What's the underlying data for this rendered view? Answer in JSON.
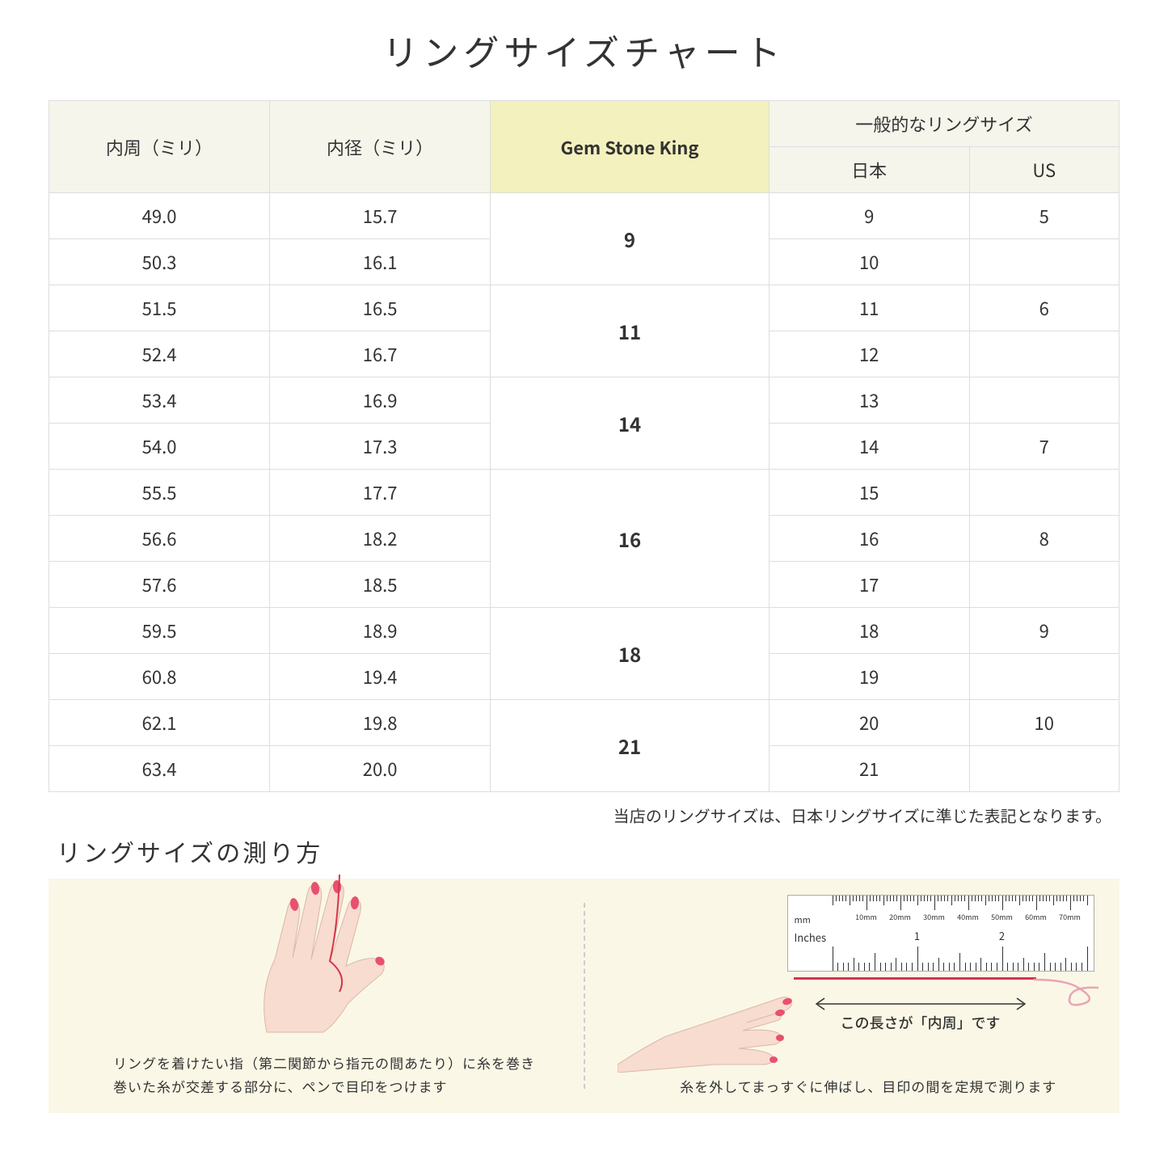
{
  "title": "リングサイズチャート",
  "headers": {
    "circumference": "内周（ミリ）",
    "diameter": "内径（ミリ）",
    "gsk": "Gem Stone King",
    "common": "一般的なリングサイズ",
    "jp": "日本",
    "us": "US"
  },
  "groups": [
    {
      "gsk": "9",
      "rows": [
        {
          "c": "49.0",
          "d": "15.7",
          "jp": "9",
          "us": "5"
        },
        {
          "c": "50.3",
          "d": "16.1",
          "jp": "10",
          "us": ""
        }
      ]
    },
    {
      "gsk": "11",
      "rows": [
        {
          "c": "51.5",
          "d": "16.5",
          "jp": "11",
          "us": "6"
        },
        {
          "c": "52.4",
          "d": "16.7",
          "jp": "12",
          "us": ""
        }
      ]
    },
    {
      "gsk": "14",
      "rows": [
        {
          "c": "53.4",
          "d": "16.9",
          "jp": "13",
          "us": ""
        },
        {
          "c": "54.0",
          "d": "17.3",
          "jp": "14",
          "us": "7"
        }
      ]
    },
    {
      "gsk": "16",
      "rows": [
        {
          "c": "55.5",
          "d": "17.7",
          "jp": "15",
          "us": ""
        },
        {
          "c": "56.6",
          "d": "18.2",
          "jp": "16",
          "us": "8"
        },
        {
          "c": "57.6",
          "d": "18.5",
          "jp": "17",
          "us": ""
        }
      ]
    },
    {
      "gsk": "18",
      "rows": [
        {
          "c": "59.5",
          "d": "18.9",
          "jp": "18",
          "us": "9"
        },
        {
          "c": "60.8",
          "d": "19.4",
          "jp": "19",
          "us": ""
        }
      ]
    },
    {
      "gsk": "21",
      "rows": [
        {
          "c": "62.1",
          "d": "19.8",
          "jp": "20",
          "us": "10"
        },
        {
          "c": "63.4",
          "d": "20.0",
          "jp": "21",
          "us": ""
        }
      ]
    }
  ],
  "note": "当店のリングサイズは、日本リングサイズに準じた表記となります。",
  "subtitle": "リングサイズの測り方",
  "caption_left_1": "リングを着けたい指（第二関節から指元の間あたり）に糸を巻き",
  "caption_left_2": "巻いた糸が交差する部分に、ペンで目印をつけます",
  "caption_right": "糸を外してまっすぐに伸ばし、目印の間を定規で測ります",
  "arrow_text": "この長さが「内周」です",
  "ruler": {
    "mm_label": "mm",
    "in_label": "Inches",
    "mm_marks": [
      "10mm",
      "20mm",
      "30mm",
      "40mm",
      "50mm",
      "60mm",
      "70mm"
    ],
    "in_marks": [
      "1",
      "2"
    ]
  },
  "colors": {
    "header_bg": "#f6f5ec",
    "gsk_bg": "#f3f1bd",
    "panel_bg": "#fbf7e6",
    "skin": "#f7dccf",
    "nail": "#e8506f",
    "thread": "#d4354a",
    "border": "#dddddd"
  }
}
